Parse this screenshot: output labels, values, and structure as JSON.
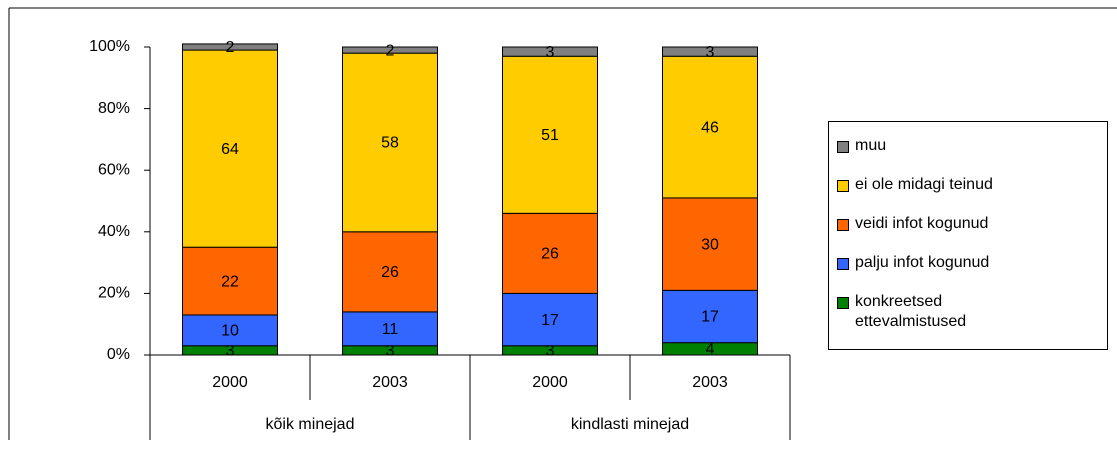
{
  "chart_data": {
    "type": "stacked_bar",
    "categories": [
      "2000",
      "2003",
      "2000",
      "2003"
    ],
    "group_labels": [
      "kõik minejad",
      "kindlasti minejad"
    ],
    "series": [
      {
        "name": "konkreetsed ettevalmistused",
        "color": "#008000",
        "values": [
          3,
          3,
          3,
          4
        ]
      },
      {
        "name": "palju infot kogunud",
        "color": "#3366ff",
        "values": [
          10,
          11,
          17,
          17
        ]
      },
      {
        "name": "veidi infot kogunud",
        "color": "#ff6600",
        "values": [
          22,
          26,
          26,
          30
        ]
      },
      {
        "name": "ei ole midagi teinud",
        "color": "#ffcc00",
        "values": [
          64,
          58,
          51,
          46
        ]
      },
      {
        "name": "muu",
        "color": "#808080",
        "values": [
          2,
          2,
          3,
          3
        ]
      }
    ],
    "ylim": [
      0,
      100
    ],
    "yticks": [
      {
        "value": 0,
        "label": "0%"
      },
      {
        "value": 20,
        "label": "20%"
      },
      {
        "value": 40,
        "label": "40%"
      },
      {
        "value": 60,
        "label": "60%"
      },
      {
        "value": 80,
        "label": "80%"
      },
      {
        "value": 100,
        "label": "100%"
      }
    ],
    "legend": "right"
  }
}
